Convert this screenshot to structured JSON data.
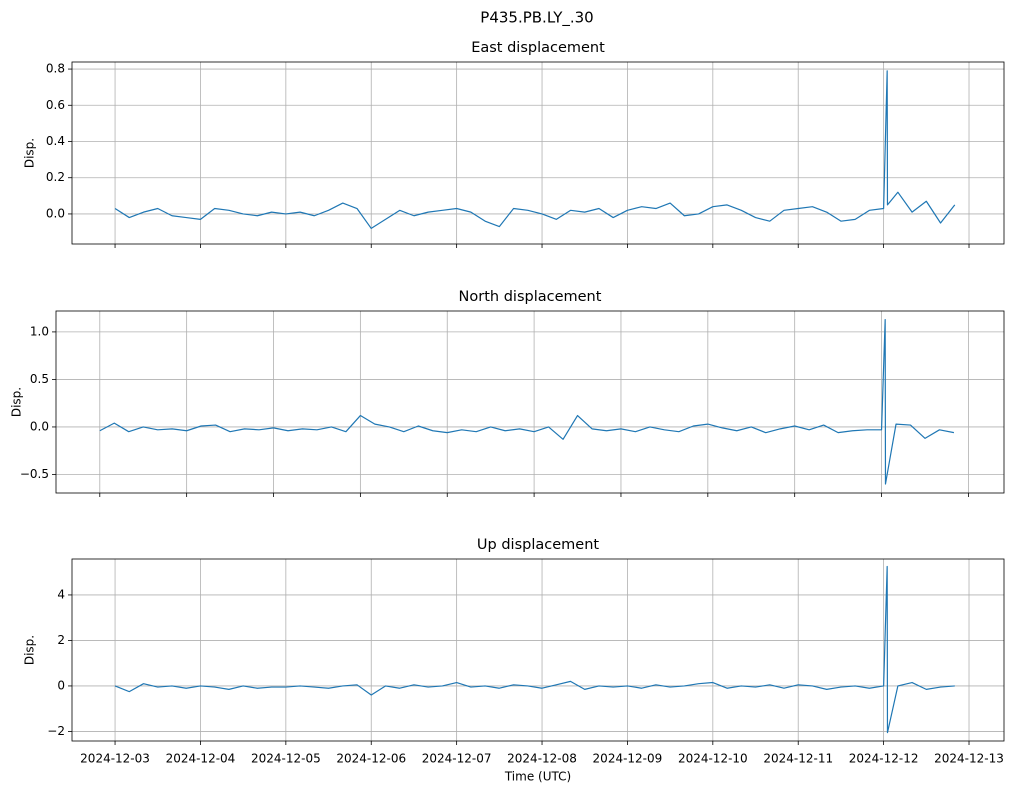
{
  "suptitle": "P435.PB.LY_.30",
  "chart_data": [
    {
      "type": "line",
      "title": "East displacement",
      "ylabel": "Disp.",
      "color": "#1f77b4",
      "grid": true,
      "x": [
        "2024-12-03T00:00",
        "2024-12-03T04:00",
        "2024-12-03T08:00",
        "2024-12-03T12:00",
        "2024-12-03T16:00",
        "2024-12-03T20:00",
        "2024-12-04T00:00",
        "2024-12-04T04:00",
        "2024-12-04T08:00",
        "2024-12-04T12:00",
        "2024-12-04T16:00",
        "2024-12-04T20:00",
        "2024-12-05T00:00",
        "2024-12-05T04:00",
        "2024-12-05T08:00",
        "2024-12-05T12:00",
        "2024-12-05T16:00",
        "2024-12-05T20:00",
        "2024-12-06T00:00",
        "2024-12-06T04:00",
        "2024-12-06T08:00",
        "2024-12-06T12:00",
        "2024-12-06T16:00",
        "2024-12-06T20:00",
        "2024-12-07T00:00",
        "2024-12-07T04:00",
        "2024-12-07T08:00",
        "2024-12-07T12:00",
        "2024-12-07T16:00",
        "2024-12-07T20:00",
        "2024-12-08T00:00",
        "2024-12-08T04:00",
        "2024-12-08T08:00",
        "2024-12-08T12:00",
        "2024-12-08T16:00",
        "2024-12-08T20:00",
        "2024-12-09T00:00",
        "2024-12-09T04:00",
        "2024-12-09T08:00",
        "2024-12-09T12:00",
        "2024-12-09T16:00",
        "2024-12-09T20:00",
        "2024-12-10T00:00",
        "2024-12-10T04:00",
        "2024-12-10T08:00",
        "2024-12-10T12:00",
        "2024-12-10T16:00",
        "2024-12-10T20:00",
        "2024-12-11T00:00",
        "2024-12-11T04:00",
        "2024-12-11T08:00",
        "2024-12-11T12:00",
        "2024-12-11T16:00",
        "2024-12-11T20:00",
        "2024-12-12T00:00",
        "2024-12-12T01:00",
        "2024-12-12T01:05",
        "2024-12-12T04:00",
        "2024-12-12T08:00",
        "2024-12-12T12:00",
        "2024-12-12T16:00",
        "2024-12-12T20:00"
      ],
      "values": [
        0.03,
        -0.02,
        0.01,
        0.03,
        -0.01,
        -0.02,
        -0.03,
        0.03,
        0.02,
        0.0,
        -0.01,
        0.01,
        0.0,
        0.01,
        -0.01,
        0.02,
        0.06,
        0.03,
        -0.08,
        -0.03,
        0.02,
        -0.01,
        0.01,
        0.02,
        0.03,
        0.01,
        -0.04,
        -0.07,
        0.03,
        0.02,
        0.0,
        -0.03,
        0.02,
        0.01,
        0.03,
        -0.02,
        0.02,
        0.04,
        0.03,
        0.06,
        -0.01,
        0.0,
        0.04,
        0.05,
        0.02,
        -0.02,
        -0.04,
        0.02,
        0.03,
        0.04,
        0.01,
        -0.04,
        -0.03,
        0.02,
        0.03,
        0.79,
        0.05,
        0.12,
        0.01,
        0.07,
        -0.05,
        0.05
      ],
      "xlim": [
        "2024-12-02T11:54",
        "2024-12-13T09:50"
      ],
      "xticks": [
        "2024-12-03",
        "2024-12-04",
        "2024-12-05",
        "2024-12-06",
        "2024-12-07",
        "2024-12-08",
        "2024-12-09",
        "2024-12-10",
        "2024-12-11",
        "2024-12-12",
        "2024-12-13"
      ],
      "ylim": [
        -0.166,
        0.839
      ],
      "yticks": [
        {
          "value": 0,
          "label": "0.0"
        },
        0.2,
        0.4,
        0.6,
        0.8
      ]
    },
    {
      "type": "line",
      "title": "North displacement",
      "ylabel": "Disp.",
      "color": "#1f77b4",
      "grid": true,
      "x": [
        "2024-12-03T00:00",
        "2024-12-03T04:00",
        "2024-12-03T08:00",
        "2024-12-03T12:00",
        "2024-12-03T16:00",
        "2024-12-03T20:00",
        "2024-12-04T00:00",
        "2024-12-04T04:00",
        "2024-12-04T08:00",
        "2024-12-04T12:00",
        "2024-12-04T16:00",
        "2024-12-04T20:00",
        "2024-12-05T00:00",
        "2024-12-05T04:00",
        "2024-12-05T08:00",
        "2024-12-05T12:00",
        "2024-12-05T16:00",
        "2024-12-05T20:00",
        "2024-12-06T00:00",
        "2024-12-06T04:00",
        "2024-12-06T08:00",
        "2024-12-06T12:00",
        "2024-12-06T16:00",
        "2024-12-06T20:00",
        "2024-12-07T00:00",
        "2024-12-07T04:00",
        "2024-12-07T08:00",
        "2024-12-07T12:00",
        "2024-12-07T16:00",
        "2024-12-07T20:00",
        "2024-12-08T00:00",
        "2024-12-08T04:00",
        "2024-12-08T08:00",
        "2024-12-08T12:00",
        "2024-12-08T16:00",
        "2024-12-08T20:00",
        "2024-12-09T00:00",
        "2024-12-09T04:00",
        "2024-12-09T08:00",
        "2024-12-09T12:00",
        "2024-12-09T16:00",
        "2024-12-09T20:00",
        "2024-12-10T00:00",
        "2024-12-10T04:00",
        "2024-12-10T08:00",
        "2024-12-10T12:00",
        "2024-12-10T16:00",
        "2024-12-10T20:00",
        "2024-12-11T00:00",
        "2024-12-11T04:00",
        "2024-12-11T08:00",
        "2024-12-11T12:00",
        "2024-12-11T16:00",
        "2024-12-11T20:00",
        "2024-12-12T00:00",
        "2024-12-12T01:00",
        "2024-12-12T01:05",
        "2024-12-12T04:00",
        "2024-12-12T08:00",
        "2024-12-12T12:00",
        "2024-12-12T16:00",
        "2024-12-12T20:00"
      ],
      "values": [
        -0.04,
        0.04,
        -0.05,
        0.0,
        -0.03,
        -0.02,
        -0.04,
        0.01,
        0.02,
        -0.05,
        -0.02,
        -0.03,
        -0.01,
        -0.04,
        -0.02,
        -0.03,
        0.0,
        -0.05,
        0.12,
        0.03,
        0.0,
        -0.05,
        0.01,
        -0.04,
        -0.06,
        -0.03,
        -0.05,
        0.0,
        -0.04,
        -0.02,
        -0.05,
        0.0,
        -0.13,
        0.12,
        -0.02,
        -0.04,
        -0.02,
        -0.05,
        0.0,
        -0.03,
        -0.05,
        0.01,
        0.03,
        -0.01,
        -0.04,
        0.0,
        -0.06,
        -0.02,
        0.01,
        -0.03,
        0.02,
        -0.06,
        -0.04,
        -0.03,
        -0.03,
        1.13,
        -0.6,
        0.03,
        0.02,
        -0.12,
        -0.03,
        -0.06
      ],
      "xlim": [
        "2024-12-02T11:54",
        "2024-12-13T09:50"
      ],
      "xticks": [
        "2024-12-03",
        "2024-12-04",
        "2024-12-05",
        "2024-12-06",
        "2024-12-07",
        "2024-12-08",
        "2024-12-09",
        "2024-12-10",
        "2024-12-11",
        "2024-12-12",
        "2024-12-13"
      ],
      "ylim": [
        -0.695,
        1.22
      ],
      "yticks": [
        {
          "value": -0.5,
          "label": "−0.5"
        },
        {
          "value": 0,
          "label": "0.0"
        },
        0.5,
        {
          "value": 1,
          "label": "1.0"
        }
      ]
    },
    {
      "type": "line",
      "title": "Up displacement",
      "ylabel": "Disp.",
      "xlabel": "Time (UTC)",
      "color": "#1f77b4",
      "grid": true,
      "show_xtick_labels": true,
      "x": [
        "2024-12-03T00:00",
        "2024-12-03T04:00",
        "2024-12-03T08:00",
        "2024-12-03T12:00",
        "2024-12-03T16:00",
        "2024-12-03T20:00",
        "2024-12-04T00:00",
        "2024-12-04T04:00",
        "2024-12-04T08:00",
        "2024-12-04T12:00",
        "2024-12-04T16:00",
        "2024-12-04T20:00",
        "2024-12-05T00:00",
        "2024-12-05T04:00",
        "2024-12-05T08:00",
        "2024-12-05T12:00",
        "2024-12-05T16:00",
        "2024-12-05T20:00",
        "2024-12-06T00:00",
        "2024-12-06T04:00",
        "2024-12-06T08:00",
        "2024-12-06T12:00",
        "2024-12-06T16:00",
        "2024-12-06T20:00",
        "2024-12-07T00:00",
        "2024-12-07T04:00",
        "2024-12-07T08:00",
        "2024-12-07T12:00",
        "2024-12-07T16:00",
        "2024-12-07T20:00",
        "2024-12-08T00:00",
        "2024-12-08T04:00",
        "2024-12-08T08:00",
        "2024-12-08T12:00",
        "2024-12-08T16:00",
        "2024-12-08T20:00",
        "2024-12-09T00:00",
        "2024-12-09T04:00",
        "2024-12-09T08:00",
        "2024-12-09T12:00",
        "2024-12-09T16:00",
        "2024-12-09T20:00",
        "2024-12-10T00:00",
        "2024-12-10T04:00",
        "2024-12-10T08:00",
        "2024-12-10T12:00",
        "2024-12-10T16:00",
        "2024-12-10T20:00",
        "2024-12-11T00:00",
        "2024-12-11T04:00",
        "2024-12-11T08:00",
        "2024-12-11T12:00",
        "2024-12-11T16:00",
        "2024-12-11T20:00",
        "2024-12-12T00:00",
        "2024-12-12T01:00",
        "2024-12-12T01:05",
        "2024-12-12T04:00",
        "2024-12-12T08:00",
        "2024-12-12T12:00",
        "2024-12-12T16:00",
        "2024-12-12T20:00"
      ],
      "values": [
        0.0,
        -0.25,
        0.1,
        -0.05,
        0.0,
        -0.1,
        0.0,
        -0.05,
        -0.15,
        0.0,
        -0.1,
        -0.05,
        -0.05,
        0.0,
        -0.05,
        -0.1,
        0.0,
        0.05,
        -0.4,
        0.0,
        -0.1,
        0.05,
        -0.05,
        0.0,
        0.15,
        -0.05,
        0.0,
        -0.1,
        0.05,
        0.0,
        -0.1,
        0.05,
        0.2,
        -0.15,
        0.0,
        -0.05,
        0.0,
        -0.1,
        0.05,
        -0.05,
        0.0,
        0.1,
        0.15,
        -0.1,
        0.0,
        -0.05,
        0.05,
        -0.1,
        0.05,
        0.0,
        -0.15,
        -0.05,
        0.0,
        -0.1,
        0.0,
        5.25,
        -2.05,
        0.0,
        0.15,
        -0.15,
        -0.05,
        0.0
      ],
      "xlim": [
        "2024-12-02T11:54",
        "2024-12-13T09:50"
      ],
      "xticks": [
        "2024-12-03",
        "2024-12-04",
        "2024-12-05",
        "2024-12-06",
        "2024-12-07",
        "2024-12-08",
        "2024-12-09",
        "2024-12-10",
        "2024-12-11",
        "2024-12-12",
        "2024-12-13"
      ],
      "ylim": [
        -2.42,
        5.58
      ],
      "yticks": [
        {
          "value": -2,
          "label": "−2"
        },
        0,
        2,
        4
      ]
    }
  ]
}
